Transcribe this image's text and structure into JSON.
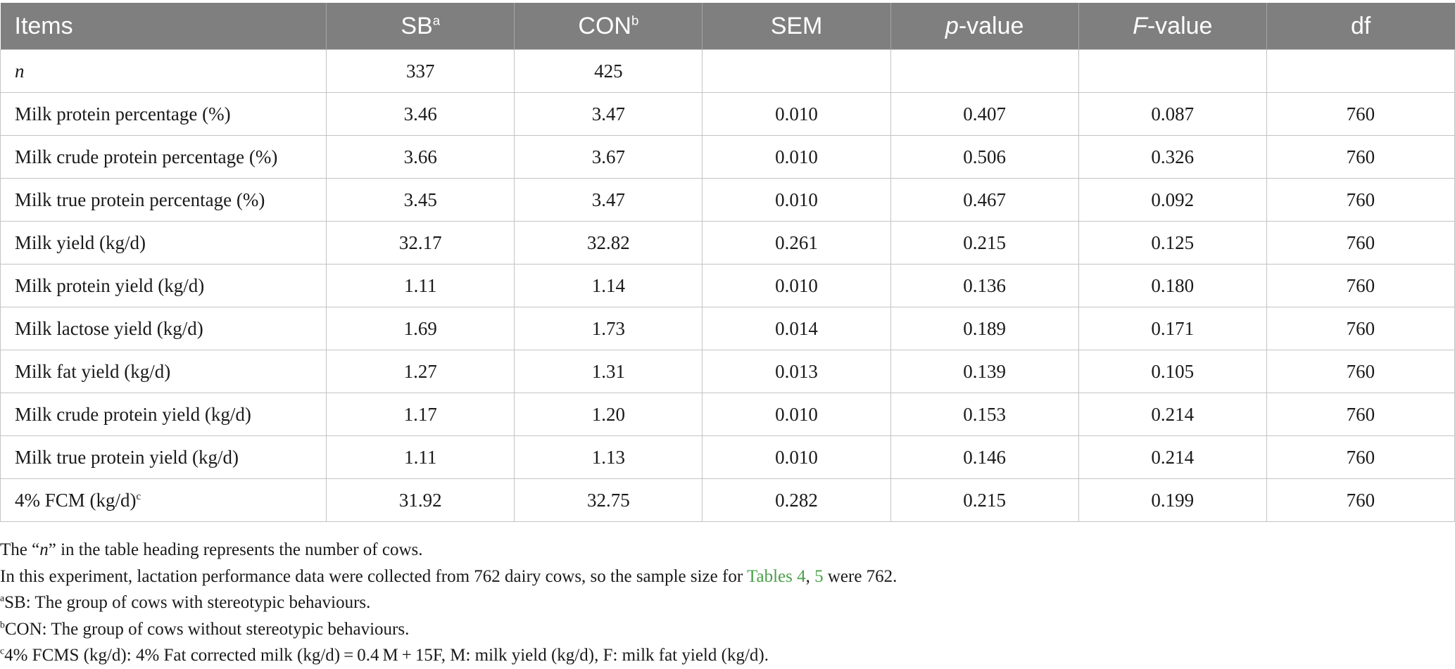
{
  "table": {
    "headers": {
      "items": "Items",
      "sb": "SB",
      "sb_sup": "a",
      "con": "CON",
      "con_sup": "b",
      "sem": "SEM",
      "p_italic": "p",
      "p_rest": "-value",
      "f_italic": "F",
      "f_rest": "-value",
      "df": "df"
    },
    "n_row": {
      "label": "n",
      "sb": "337",
      "con": "425"
    },
    "rows": [
      {
        "item": "Milk protein percentage (%)",
        "sb": "3.46",
        "con": "3.47",
        "sem": "0.010",
        "p": "0.407",
        "f": "0.087",
        "df": "760"
      },
      {
        "item": "Milk crude protein percentage (%)",
        "sb": "3.66",
        "con": "3.67",
        "sem": "0.010",
        "p": "0.506",
        "f": "0.326",
        "df": "760"
      },
      {
        "item": "Milk true protein percentage (%)",
        "sb": "3.45",
        "con": "3.47",
        "sem": "0.010",
        "p": "0.467",
        "f": "0.092",
        "df": "760"
      },
      {
        "item": "Milk yield (kg/d)",
        "sb": "32.17",
        "con": "32.82",
        "sem": "0.261",
        "p": "0.215",
        "f": "0.125",
        "df": "760"
      },
      {
        "item": "Milk protein yield (kg/d)",
        "sb": "1.11",
        "con": "1.14",
        "sem": "0.010",
        "p": "0.136",
        "f": "0.180",
        "df": "760"
      },
      {
        "item": "Milk lactose yield (kg/d)",
        "sb": "1.69",
        "con": "1.73",
        "sem": "0.014",
        "p": "0.189",
        "f": "0.171",
        "df": "760"
      },
      {
        "item": "Milk fat yield (kg/d)",
        "sb": "1.27",
        "con": "1.31",
        "sem": "0.013",
        "p": "0.139",
        "f": "0.105",
        "df": "760"
      },
      {
        "item": "Milk crude protein yield (kg/d)",
        "sb": "1.17",
        "con": "1.20",
        "sem": "0.010",
        "p": "0.153",
        "f": "0.214",
        "df": "760"
      },
      {
        "item": "Milk true protein yield (kg/d)",
        "sb": "1.11",
        "con": "1.13",
        "sem": "0.010",
        "p": "0.146",
        "f": "0.214",
        "df": "760"
      },
      {
        "item": "4% FCM (kg/d)",
        "item_sup": "c",
        "sb": "31.92",
        "con": "32.75",
        "sem": "0.282",
        "p": "0.215",
        "f": "0.199",
        "df": "760"
      }
    ]
  },
  "notes": {
    "n_pre": "The “",
    "n_italic": "n",
    "n_post": "” in the table heading represents the number of cows.",
    "sample_pre": "In this experiment, lactation performance data were collected from 762 dairy cows, so the sample size for ",
    "sample_link1": "Tables 4",
    "sample_comma": ", ",
    "sample_link2": "5",
    "sample_post": " were 762.",
    "a_sup": "a",
    "a_text": "SB: The group of cows with stereotypic behaviours.",
    "b_sup": "b",
    "b_text": "CON: The group of cows without stereotypic behaviours.",
    "c_sup": "c",
    "c_text": "4% FCMS (kg/d): 4% Fat corrected milk (kg/d) = 0.4 M + 15F, M: milk yield (kg/d), F: milk fat yield (kg/d)."
  },
  "colors": {
    "header_bg": "#7f7f7f",
    "header_text": "#ffffff",
    "grid": "#c4c4c4",
    "link": "#4aa04a"
  }
}
